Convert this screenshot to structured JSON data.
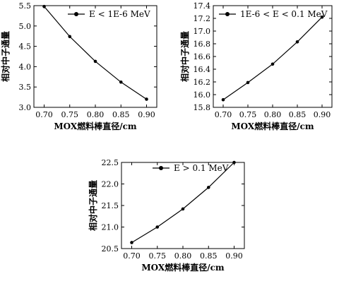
{
  "chart_data": [
    {
      "type": "line",
      "x": [
        0.7,
        0.75,
        0.8,
        0.85,
        0.9
      ],
      "series": [
        {
          "name": "E < 1E-6 MeV",
          "values": [
            5.48,
            4.74,
            4.13,
            3.62,
            3.2
          ]
        }
      ],
      "xlabel": "MOX燃料棒直径/cm",
      "ylabel": "相对中子通量",
      "xlim": [
        0.68,
        0.92
      ],
      "ylim": [
        3.0,
        5.5
      ],
      "xticks": [
        "0.70",
        "0.75",
        "0.80",
        "0.85",
        "0.90"
      ],
      "yticks": [
        "3.0",
        "3.5",
        "4.0",
        "4.5",
        "5.0",
        "5.5"
      ],
      "legend_position": "top-right",
      "grid": false
    },
    {
      "type": "line",
      "x": [
        0.7,
        0.75,
        0.8,
        0.85,
        0.9
      ],
      "series": [
        {
          "name": "1E-6 < E < 0.1 MeV",
          "values": [
            15.92,
            16.19,
            16.48,
            16.83,
            17.22
          ]
        }
      ],
      "xlabel": "MOX燃料棒直径/cm",
      "ylabel": "相对中子通量",
      "xlim": [
        0.68,
        0.92
      ],
      "ylim": [
        15.8,
        17.4
      ],
      "xticks": [
        "0.70",
        "0.75",
        "0.80",
        "0.85",
        "0.90"
      ],
      "yticks": [
        "15.8",
        "16.0",
        "16.2",
        "16.4",
        "16.6",
        "16.8",
        "17.0",
        "17.2",
        "17.4"
      ],
      "legend_position": "top-left",
      "grid": false
    },
    {
      "type": "line",
      "x": [
        0.7,
        0.75,
        0.8,
        0.85,
        0.9
      ],
      "series": [
        {
          "name": "E > 0.1 MeV",
          "values": [
            20.64,
            21.0,
            21.42,
            21.92,
            22.5
          ]
        }
      ],
      "xlabel": "MOX燃料棒直径/cm",
      "ylabel": "相对中子通量",
      "xlim": [
        0.68,
        0.92
      ],
      "ylim": [
        20.5,
        22.5
      ],
      "xticks": [
        "0.70",
        "0.75",
        "0.80",
        "0.85",
        "0.90"
      ],
      "yticks": [
        "20.5",
        "21.0",
        "21.5",
        "22.0",
        "22.5"
      ],
      "legend_position": "top-left",
      "grid": false
    }
  ]
}
